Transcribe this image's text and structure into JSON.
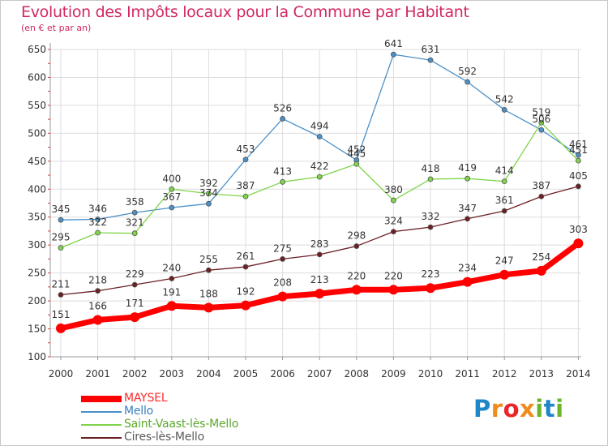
{
  "title": "Evolution des Impôts locaux pour la Commune par Habitant",
  "subtitle": "(en € et par an)",
  "logo": [
    "P",
    "r",
    "o",
    "x",
    "i",
    "t",
    "i"
  ],
  "chart_data": {
    "type": "line",
    "title": "Evolution des Impôts locaux pour la Commune par Habitant",
    "subtitle": "(en € et par an)",
    "x": [
      2000,
      2001,
      2002,
      2003,
      2004,
      2005,
      2006,
      2007,
      2008,
      2009,
      2010,
      2011,
      2012,
      2013,
      2014
    ],
    "ylim": [
      100,
      650
    ],
    "yticks": [
      100,
      150,
      200,
      250,
      300,
      350,
      400,
      450,
      500,
      550,
      600,
      650
    ],
    "grid": true,
    "legend_position": "bottom-left",
    "series": [
      {
        "name": "Mello",
        "color": "#4a90c8",
        "values": [
          345,
          346,
          358,
          367,
          374,
          453,
          526,
          494,
          452,
          641,
          631,
          592,
          542,
          506,
          461
        ]
      },
      {
        "name": "Saint-Vaast-lès-Mello",
        "color": "#7fd44a",
        "values": [
          295,
          322,
          321,
          400,
          392,
          387,
          413,
          422,
          445,
          380,
          418,
          419,
          414,
          519,
          451
        ]
      },
      {
        "name": "Cires-lès-Mello",
        "color": "#6b1f23",
        "values": [
          211,
          218,
          229,
          240,
          255,
          261,
          275,
          283,
          298,
          324,
          332,
          347,
          361,
          387,
          405
        ]
      },
      {
        "name": "MAYSEL",
        "color": "#ff0000",
        "values": [
          151,
          166,
          171,
          191,
          188,
          192,
          208,
          213,
          220,
          220,
          223,
          234,
          247,
          254,
          303
        ]
      }
    ],
    "legend_order": [
      "MAYSEL",
      "Mello",
      "Saint-Vaast-lès-Mello",
      "Cires-lès-Mello"
    ]
  }
}
